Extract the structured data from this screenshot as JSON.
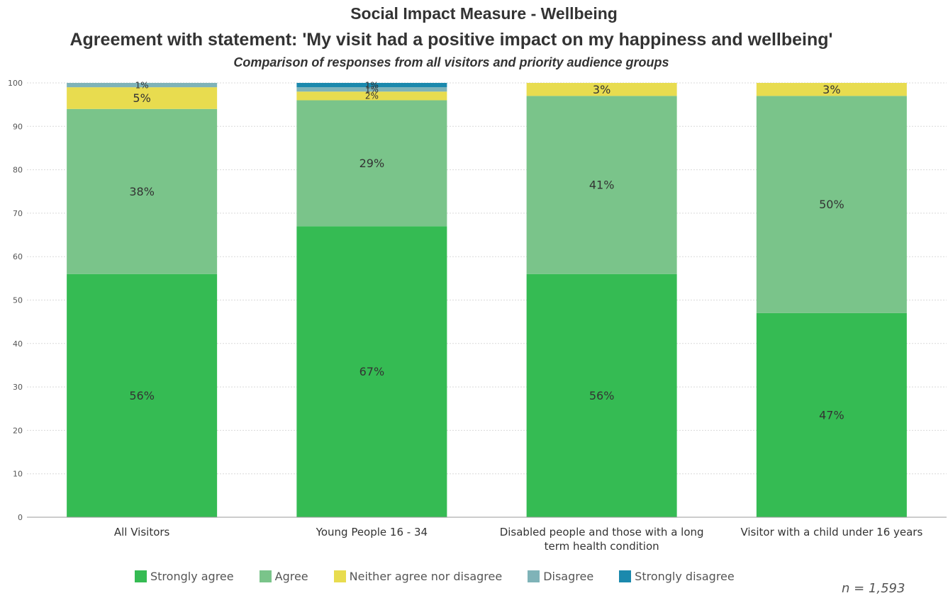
{
  "titles": {
    "main": "Social Impact Measure - Wellbeing",
    "statement": "Agreement with statement: 'My visit had a positive impact on my happiness and wellbeing'",
    "subtitle": "Comparison of responses from all visitors and priority audience groups"
  },
  "sample_note": "n = 1,593",
  "chart_data": {
    "type": "bar",
    "stacked": true,
    "title": "Social Impact Measure - Wellbeing",
    "subtitle": "Comparison of responses from all visitors and priority audience groups",
    "categories": [
      [
        "All Visitors"
      ],
      [
        "Young People 16 - 34"
      ],
      [
        "Disabled people and those with a long",
        "term health condition"
      ],
      [
        "Visitor with a child under 16 years"
      ]
    ],
    "ylim": [
      0,
      100
    ],
    "yticks": [
      0,
      10,
      20,
      30,
      40,
      50,
      60,
      70,
      80,
      90,
      100
    ],
    "grid": true,
    "legend_position": "bottom",
    "series": [
      {
        "name": "Strongly agree",
        "color": "#35bb53",
        "values": [
          56,
          67,
          56,
          47
        ],
        "labels": [
          "56%",
          "67%",
          "56%",
          "47%"
        ]
      },
      {
        "name": "Agree",
        "color": "#7ac48a",
        "values": [
          38,
          29,
          41,
          50
        ],
        "labels": [
          "38%",
          "29%",
          "41%",
          "50%"
        ]
      },
      {
        "name": "Neither agree nor disagree",
        "color": "#e8dc4f",
        "values": [
          5,
          2,
          3,
          3
        ],
        "labels": [
          "5%",
          "2%",
          "3%",
          "3%"
        ]
      },
      {
        "name": "Disagree",
        "color": "#7fb3b8",
        "values": [
          1,
          1,
          0,
          0
        ],
        "labels": [
          "1%",
          "1%",
          "",
          ""
        ]
      },
      {
        "name": "Strongly disagree",
        "color": "#1b89ad",
        "values": [
          0,
          1,
          0,
          0
        ],
        "labels": [
          "",
          "1%",
          "",
          ""
        ]
      }
    ]
  }
}
